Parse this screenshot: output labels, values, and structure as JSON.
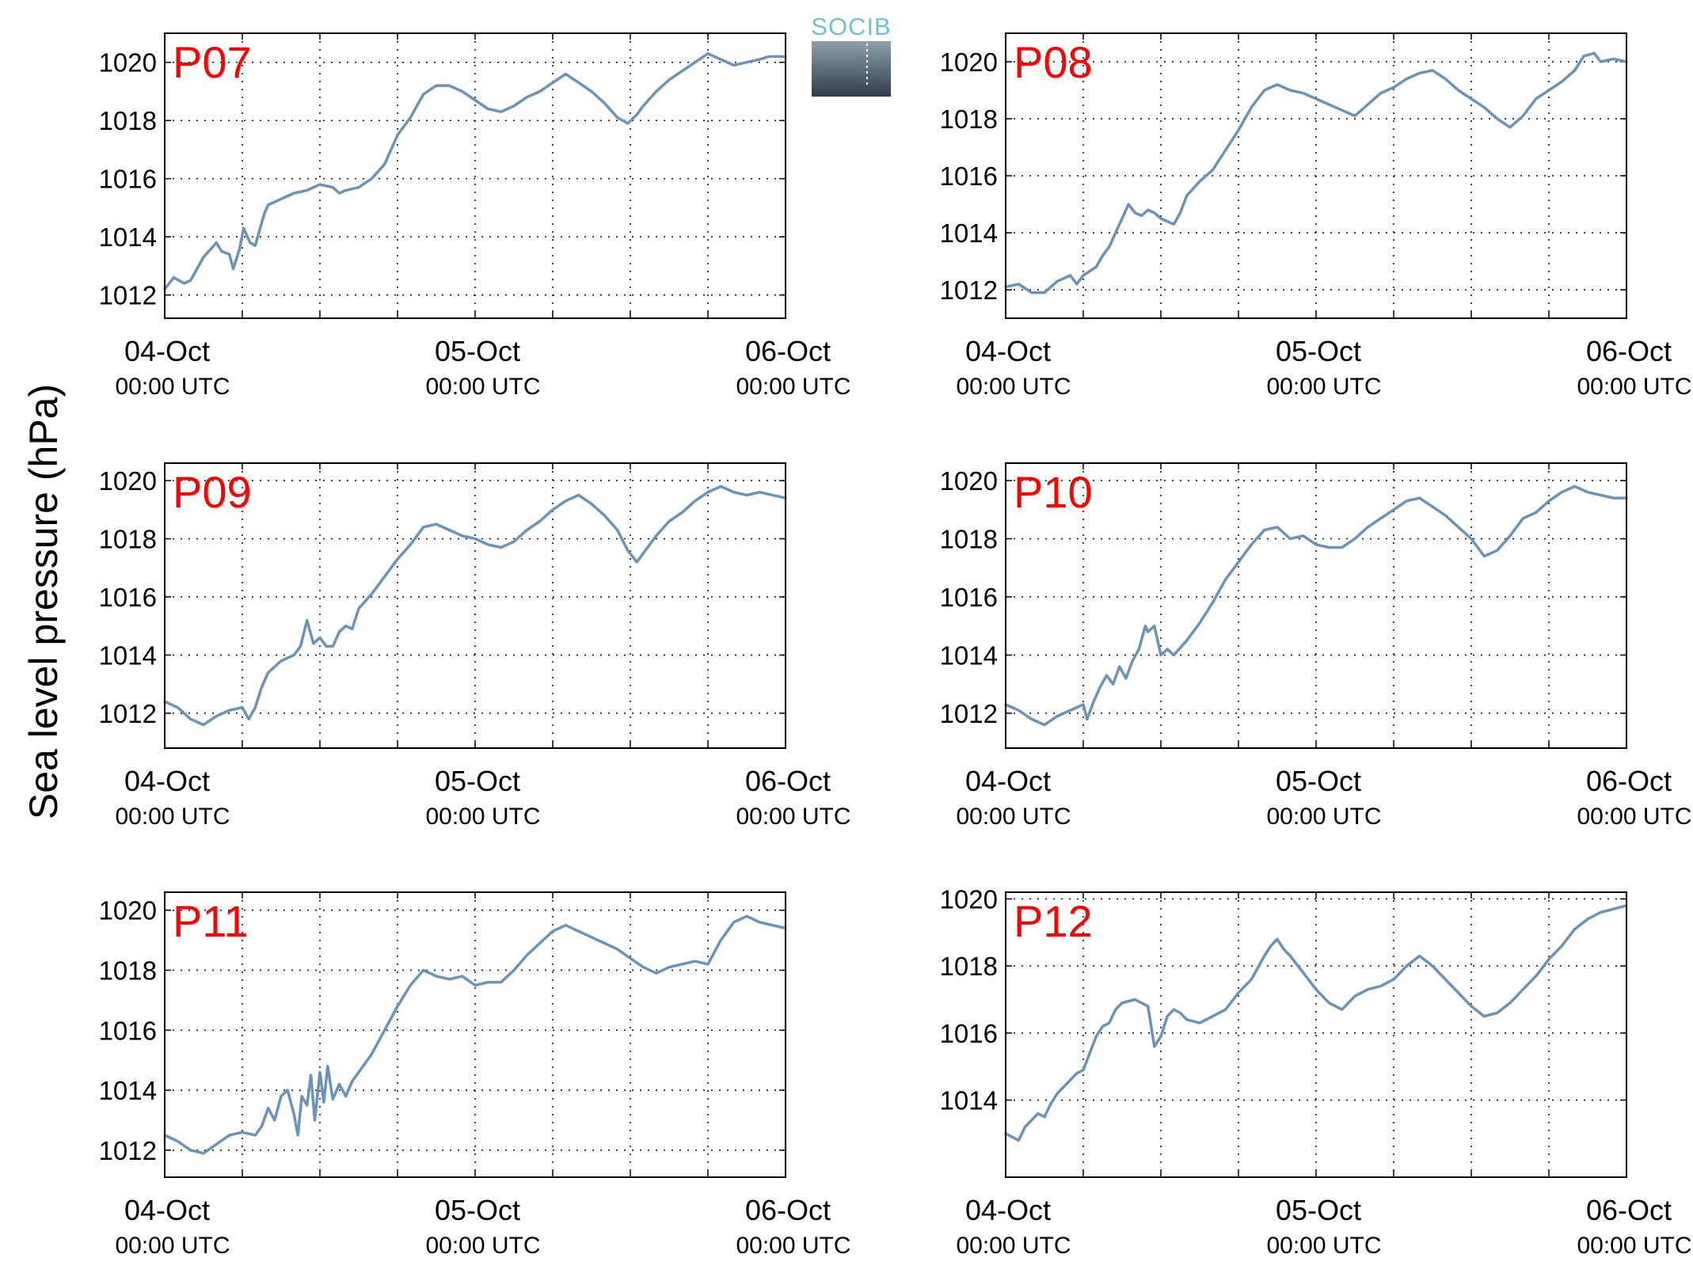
{
  "figure": {
    "ylabel": "Sea level pressure (hPa)",
    "logo_text": "SOCIB",
    "line_color": "#6a93b7",
    "label_color": "#ff0000",
    "logo_top_color": "#8fa0ab",
    "logo_bottom_color": "#2f3d49"
  },
  "chart_data": [
    {
      "type": "line",
      "label": "P07",
      "title": "",
      "xlabel": "",
      "ylabel": "Sea level pressure (hPa)",
      "x_units": "hours since 04-Oct 00:00 UTC",
      "xlim": [
        0,
        48
      ],
      "ylim": [
        1011.2,
        1021.0
      ],
      "yticks": [
        "1012",
        "1014",
        "1016",
        "1018",
        "1020"
      ],
      "xticks": [
        {
          "main": "04-Oct",
          "sub": "00:00 UTC"
        },
        {
          "main": "05-Oct",
          "sub": "00:00 UTC"
        },
        {
          "main": "06-Oct",
          "sub": "00:00 UTC"
        }
      ],
      "grid": true,
      "x": [
        0,
        0.7,
        1.5,
        2,
        3,
        4,
        4.4,
        5,
        5.3,
        5.8,
        6.1,
        6.6,
        7,
        7.7,
        8,
        9,
        10,
        11,
        12,
        13,
        13.5,
        14,
        15,
        16,
        17,
        17.6,
        18,
        19,
        20,
        21,
        22,
        23,
        24,
        25,
        26,
        27,
        28,
        29,
        30,
        31,
        32,
        33,
        34,
        35,
        35.8,
        36.5,
        37,
        38,
        39,
        40,
        41,
        42,
        43,
        44,
        45,
        46,
        46.7,
        47.5,
        48
      ],
      "y": [
        1012.2,
        1012.6,
        1012.4,
        1012.5,
        1013.3,
        1013.8,
        1013.5,
        1013.4,
        1012.9,
        1013.6,
        1014.3,
        1013.8,
        1013.7,
        1014.8,
        1015.1,
        1015.3,
        1015.5,
        1015.6,
        1015.8,
        1015.7,
        1015.5,
        1015.6,
        1015.7,
        1016.0,
        1016.5,
        1017.1,
        1017.5,
        1018.1,
        1018.9,
        1019.2,
        1019.2,
        1019.0,
        1018.7,
        1018.4,
        1018.3,
        1018.5,
        1018.8,
        1019.0,
        1019.3,
        1019.6,
        1019.3,
        1019.0,
        1018.6,
        1018.1,
        1017.9,
        1018.2,
        1018.5,
        1019.0,
        1019.4,
        1019.7,
        1020.0,
        1020.3,
        1020.1,
        1019.9,
        1020.0,
        1020.1,
        1020.2,
        1020.2,
        1020.2
      ]
    },
    {
      "type": "line",
      "label": "P08",
      "title": "",
      "xlabel": "",
      "ylabel": "Sea level pressure (hPa)",
      "x_units": "hours since 04-Oct 00:00 UTC",
      "xlim": [
        0,
        48
      ],
      "ylim": [
        1011.0,
        1021.0
      ],
      "yticks": [
        "1012",
        "1014",
        "1016",
        "1018",
        "1020"
      ],
      "xticks": [
        {
          "main": "04-Oct",
          "sub": "00:00 UTC"
        },
        {
          "main": "05-Oct",
          "sub": "00:00 UTC"
        },
        {
          "main": "06-Oct",
          "sub": "00:00 UTC"
        }
      ],
      "grid": true,
      "x": [
        0,
        1,
        2,
        3,
        4,
        5,
        5.5,
        6,
        7,
        7.5,
        8,
        8.5,
        9,
        9.5,
        10,
        10.5,
        11,
        11.5,
        12,
        13,
        13.5,
        14,
        15,
        16,
        17,
        18,
        19,
        20,
        21,
        22,
        23,
        24,
        25,
        26,
        27,
        28,
        29,
        30,
        31,
        32,
        33,
        34,
        35,
        36,
        37,
        38,
        39,
        40,
        41,
        42,
        43,
        44,
        44.7,
        45.5,
        46,
        47,
        48
      ],
      "y": [
        1012.1,
        1012.2,
        1011.9,
        1011.9,
        1012.3,
        1012.5,
        1012.2,
        1012.5,
        1012.8,
        1013.2,
        1013.5,
        1014.0,
        1014.5,
        1015.0,
        1014.7,
        1014.6,
        1014.8,
        1014.7,
        1014.5,
        1014.3,
        1014.7,
        1015.3,
        1015.8,
        1016.2,
        1016.9,
        1017.6,
        1018.4,
        1019.0,
        1019.2,
        1019.0,
        1018.9,
        1018.7,
        1018.5,
        1018.3,
        1018.1,
        1018.5,
        1018.9,
        1019.1,
        1019.4,
        1019.6,
        1019.7,
        1019.4,
        1019.0,
        1018.7,
        1018.4,
        1018.0,
        1017.7,
        1018.1,
        1018.7,
        1019.0,
        1019.3,
        1019.7,
        1020.2,
        1020.3,
        1020.0,
        1020.1,
        1020.0
      ]
    },
    {
      "type": "line",
      "label": "P09",
      "title": "",
      "xlabel": "",
      "ylabel": "Sea level pressure (hPa)",
      "x_units": "hours since 04-Oct 00:00 UTC",
      "xlim": [
        0,
        48
      ],
      "ylim": [
        1010.8,
        1020.6
      ],
      "yticks": [
        "1012",
        "1014",
        "1016",
        "1018",
        "1020"
      ],
      "xticks": [
        {
          "main": "04-Oct",
          "sub": "00:00 UTC"
        },
        {
          "main": "05-Oct",
          "sub": "00:00 UTC"
        },
        {
          "main": "06-Oct",
          "sub": "00:00 UTC"
        }
      ],
      "grid": true,
      "x": [
        0,
        1,
        2,
        3,
        4,
        5,
        6,
        6.5,
        7,
        7.5,
        8,
        9,
        10,
        10.5,
        11,
        11.5,
        12,
        12.5,
        13,
        13.5,
        14,
        14.5,
        15,
        16,
        17,
        18,
        19,
        20,
        21,
        22,
        23,
        24,
        25,
        26,
        27,
        28,
        29,
        30,
        31,
        32,
        33,
        34,
        35,
        35.8,
        36.5,
        37,
        38,
        39,
        40,
        41,
        42,
        43,
        44,
        45,
        46,
        47,
        48
      ],
      "y": [
        1012.4,
        1012.2,
        1011.8,
        1011.6,
        1011.9,
        1012.1,
        1012.2,
        1011.8,
        1012.2,
        1012.9,
        1013.4,
        1013.8,
        1014.0,
        1014.3,
        1015.2,
        1014.4,
        1014.6,
        1014.3,
        1014.3,
        1014.8,
        1015.0,
        1014.9,
        1015.6,
        1016.1,
        1016.7,
        1017.3,
        1017.8,
        1018.4,
        1018.5,
        1018.3,
        1018.1,
        1018.0,
        1017.8,
        1017.7,
        1017.9,
        1018.3,
        1018.6,
        1019.0,
        1019.3,
        1019.5,
        1019.2,
        1018.8,
        1018.3,
        1017.6,
        1017.2,
        1017.5,
        1018.1,
        1018.6,
        1018.9,
        1019.3,
        1019.6,
        1019.8,
        1019.6,
        1019.5,
        1019.6,
        1019.5,
        1019.4
      ]
    },
    {
      "type": "line",
      "label": "P10",
      "title": "",
      "xlabel": "",
      "ylabel": "Sea level pressure (hPa)",
      "x_units": "hours since 04-Oct 00:00 UTC",
      "xlim": [
        0,
        48
      ],
      "ylim": [
        1010.8,
        1020.6
      ],
      "yticks": [
        "1012",
        "1014",
        "1016",
        "1018",
        "1020"
      ],
      "xticks": [
        {
          "main": "04-Oct",
          "sub": "00:00 UTC"
        },
        {
          "main": "05-Oct",
          "sub": "00:00 UTC"
        },
        {
          "main": "06-Oct",
          "sub": "00:00 UTC"
        }
      ],
      "grid": true,
      "x": [
        0,
        1,
        2,
        3,
        4,
        5,
        6,
        6.3,
        6.8,
        7.3,
        7.8,
        8.3,
        8.8,
        9.3,
        9.8,
        10.3,
        10.8,
        11,
        11.5,
        12,
        12.5,
        13,
        14,
        15,
        16,
        17,
        18,
        19,
        20,
        21,
        22,
        23,
        24,
        25,
        26,
        27,
        28,
        29,
        30,
        31,
        32,
        33,
        34,
        35,
        36,
        37,
        38,
        39,
        40,
        41,
        42,
        43,
        44,
        45,
        46,
        47,
        48
      ],
      "y": [
        1012.3,
        1012.1,
        1011.8,
        1011.6,
        1011.9,
        1012.1,
        1012.3,
        1011.8,
        1012.4,
        1012.9,
        1013.3,
        1013.0,
        1013.6,
        1013.2,
        1013.8,
        1014.2,
        1015.0,
        1014.8,
        1015.0,
        1014.0,
        1014.2,
        1014.0,
        1014.5,
        1015.1,
        1015.8,
        1016.6,
        1017.2,
        1017.8,
        1018.3,
        1018.4,
        1018.0,
        1018.1,
        1017.8,
        1017.7,
        1017.7,
        1018.0,
        1018.4,
        1018.7,
        1019.0,
        1019.3,
        1019.4,
        1019.1,
        1018.8,
        1018.4,
        1018.0,
        1017.4,
        1017.6,
        1018.1,
        1018.7,
        1018.9,
        1019.3,
        1019.6,
        1019.8,
        1019.6,
        1019.5,
        1019.4,
        1019.4
      ]
    },
    {
      "type": "line",
      "label": "P11",
      "title": "",
      "xlabel": "",
      "ylabel": "Sea level pressure (hPa)",
      "x_units": "hours since 04-Oct 00:00 UTC",
      "xlim": [
        0,
        48
      ],
      "ylim": [
        1011.1,
        1020.6
      ],
      "yticks": [
        "1012",
        "1014",
        "1016",
        "1018",
        "1020"
      ],
      "xticks": [
        {
          "main": "04-Oct",
          "sub": "00:00 UTC"
        },
        {
          "main": "05-Oct",
          "sub": "00:00 UTC"
        },
        {
          "main": "06-Oct",
          "sub": "00:00 UTC"
        }
      ],
      "grid": true,
      "x": [
        0,
        1,
        2,
        3,
        4,
        5,
        6,
        7,
        7.5,
        8,
        8.5,
        9,
        9.5,
        10,
        10.3,
        10.6,
        11,
        11.3,
        11.6,
        12,
        12.3,
        12.6,
        13,
        13.5,
        14,
        14.5,
        15,
        16,
        17,
        18,
        19,
        20,
        21,
        22,
        23,
        24,
        25,
        26,
        27,
        28,
        29,
        30,
        31,
        32,
        33,
        34,
        35,
        36,
        37,
        38,
        39,
        40,
        41,
        42,
        43,
        44,
        45,
        46,
        47,
        48
      ],
      "y": [
        1012.5,
        1012.3,
        1012.0,
        1011.9,
        1012.2,
        1012.5,
        1012.6,
        1012.5,
        1012.8,
        1013.4,
        1013.0,
        1013.8,
        1014.0,
        1013.2,
        1012.5,
        1013.8,
        1013.5,
        1014.5,
        1013.0,
        1014.6,
        1013.6,
        1014.8,
        1013.7,
        1014.2,
        1013.8,
        1014.3,
        1014.6,
        1015.2,
        1016.0,
        1016.8,
        1017.5,
        1018.0,
        1017.8,
        1017.7,
        1017.8,
        1017.5,
        1017.6,
        1017.6,
        1018.0,
        1018.5,
        1018.9,
        1019.3,
        1019.5,
        1019.3,
        1019.1,
        1018.9,
        1018.7,
        1018.4,
        1018.1,
        1017.9,
        1018.1,
        1018.2,
        1018.3,
        1018.2,
        1019.0,
        1019.6,
        1019.8,
        1019.6,
        1019.5,
        1019.4
      ]
    },
    {
      "type": "line",
      "label": "P12",
      "title": "",
      "xlabel": "",
      "ylabel": "Sea level pressure (hPa)",
      "x_units": "hours since 04-Oct 00:00 UTC",
      "xlim": [
        0,
        48
      ],
      "ylim": [
        1011.7,
        1020.2
      ],
      "yticks": [
        "1014",
        "1016",
        "1018",
        "1020"
      ],
      "xticks": [
        {
          "main": "04-Oct",
          "sub": "00:00 UTC"
        },
        {
          "main": "05-Oct",
          "sub": "00:00 UTC"
        },
        {
          "main": "06-Oct",
          "sub": "00:00 UTC"
        }
      ],
      "grid": true,
      "x": [
        0,
        0.5,
        1,
        1.5,
        2,
        2.5,
        3,
        3.5,
        4,
        4.5,
        5,
        5.5,
        6,
        6.5,
        7,
        7.5,
        8,
        8.5,
        9,
        10,
        11,
        11.5,
        12,
        12.5,
        13,
        13.5,
        14,
        15,
        16,
        17,
        18,
        19,
        20,
        20.5,
        21,
        21.5,
        22,
        23,
        24,
        25,
        26,
        27,
        28,
        29,
        30,
        31,
        32,
        33,
        34,
        35,
        36,
        37,
        38,
        39,
        40,
        41,
        42,
        43,
        44,
        45,
        46,
        47,
        48
      ],
      "y": [
        1013.0,
        1012.9,
        1012.8,
        1013.2,
        1013.4,
        1013.6,
        1013.5,
        1013.9,
        1014.2,
        1014.4,
        1014.6,
        1014.8,
        1014.9,
        1015.4,
        1015.9,
        1016.2,
        1016.3,
        1016.7,
        1016.9,
        1017.0,
        1016.8,
        1015.6,
        1015.9,
        1016.5,
        1016.7,
        1016.6,
        1016.4,
        1016.3,
        1016.5,
        1016.7,
        1017.2,
        1017.6,
        1018.3,
        1018.6,
        1018.8,
        1018.5,
        1018.3,
        1017.8,
        1017.3,
        1016.9,
        1016.7,
        1017.1,
        1017.3,
        1017.4,
        1017.6,
        1018.0,
        1018.3,
        1018.0,
        1017.6,
        1017.2,
        1016.8,
        1016.5,
        1016.6,
        1016.9,
        1017.3,
        1017.7,
        1018.2,
        1018.6,
        1019.1,
        1019.4,
        1019.6,
        1019.7,
        1019.8
      ]
    }
  ]
}
